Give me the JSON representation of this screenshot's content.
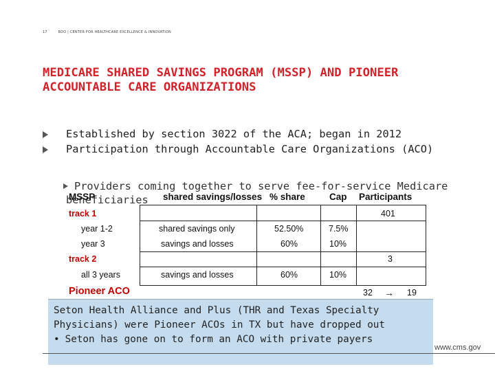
{
  "header": {
    "page_number": "17",
    "org_line": "BDO  |  CENTER FOR HEALTHCARE EXCELLENCE & INNOVATION"
  },
  "title": "MEDICARE SHARED SAVINGS PROGRAM (MSSP) AND PIONEER ACCOUNTABLE CARE ORGANIZATIONS",
  "bullets": [
    "Established by section 3022 of the ACA; began in 2012",
    "Participation through Accountable Care Organizations (ACO)"
  ],
  "sub_bullet": {
    "line1": "Providers coming together to serve fee-for-service Medicare",
    "line2": "beneficiaries"
  },
  "table": {
    "headers": {
      "program": "MSSP",
      "type": "shared savings/losses",
      "share": "% share",
      "cap": "Cap",
      "participants": "Participants"
    },
    "track1": {
      "label": "track 1",
      "participants": "401",
      "rows": [
        {
          "label": "year 1-2",
          "type": "shared savings only",
          "share": "52.50%",
          "cap": "7.5%"
        },
        {
          "label": "year 3",
          "type": "savings and losses",
          "share": "60%",
          "cap": "10%"
        }
      ]
    },
    "track2": {
      "label": "track 2",
      "participants": "3",
      "rows": [
        {
          "label": "all 3 years",
          "type": "savings and losses",
          "share": "60%",
          "cap": "10%"
        }
      ]
    },
    "pioneer": {
      "label": "Pioneer ACO",
      "from": "32",
      "arrow": "→",
      "to": "19"
    }
  },
  "callout": {
    "text": "Seton Health Alliance and Plus (THR and Texas Specialty Physicians) were Pioneer ACOs in TX but have dropped out",
    "bullet": "Seton has gone on to form an ACO with private payers"
  },
  "footer": {
    "url": "www.cms.gov"
  }
}
